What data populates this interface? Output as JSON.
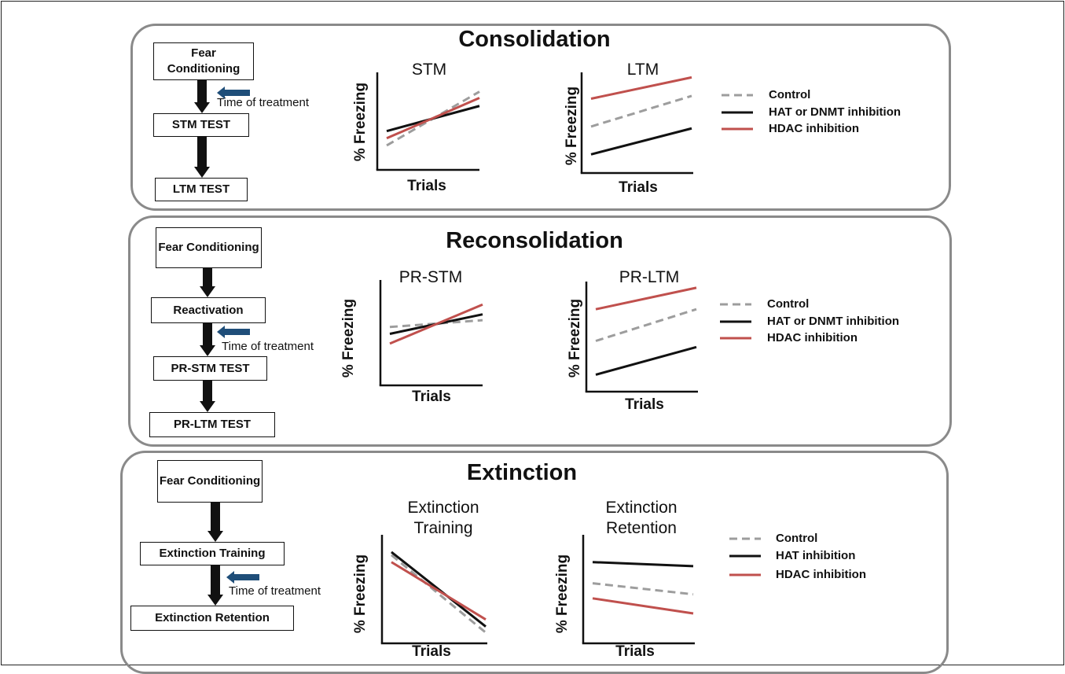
{
  "colors": {
    "control": "#9d9d9d",
    "inhibitor": "#111111",
    "hdac": "#c0504d",
    "panel_border": "#8a8a8a",
    "treatment_arrow": "#1f4e79"
  },
  "axis": {
    "y_label": "% Freezing",
    "x_label": "Trials"
  },
  "panels": [
    {
      "title": "Consolidation",
      "flow": [
        "Fear Conditioning",
        "STM TEST",
        "LTM TEST"
      ],
      "treatment_label": "Time of treatment",
      "legend": [
        "Control",
        "HAT or DNMT inhibition",
        "HDAC inhibition"
      ],
      "charts": [
        {
          "title": "STM",
          "series": [
            {
              "name": "Control",
              "values": [
                0.22,
                0.82
              ]
            },
            {
              "name": "HAT or DNMT inhibition",
              "values": [
                0.38,
                0.66
              ]
            },
            {
              "name": "HDAC inhibition",
              "values": [
                0.3,
                0.75
              ]
            }
          ]
        },
        {
          "title": "LTM",
          "series": [
            {
              "name": "Control",
              "values": [
                0.45,
                0.78
              ]
            },
            {
              "name": "HAT or DNMT inhibition",
              "values": [
                0.15,
                0.43
              ]
            },
            {
              "name": "HDAC inhibition",
              "values": [
                0.75,
                0.98
              ]
            }
          ]
        }
      ]
    },
    {
      "title": "Reconsolidation",
      "flow": [
        "Fear Conditioning",
        "Reactivation",
        "PR-STM TEST",
        "PR-LTM TEST"
      ],
      "treatment_label": "Time of treatment",
      "legend": [
        "Control",
        "HAT or DNMT inhibition",
        "HDAC inhibition"
      ],
      "charts": [
        {
          "title": "PR-STM",
          "series": [
            {
              "name": "Control",
              "values": [
                0.55,
                0.62
              ]
            },
            {
              "name": "HAT or DNMT inhibition",
              "values": [
                0.48,
                0.68
              ]
            },
            {
              "name": "HDAC inhibition",
              "values": [
                0.38,
                0.78
              ]
            }
          ]
        },
        {
          "title": "PR-LTM",
          "series": [
            {
              "name": "Control",
              "values": [
                0.45,
                0.76
              ]
            },
            {
              "name": "HAT or DNMT inhibition",
              "values": [
                0.12,
                0.39
              ]
            },
            {
              "name": "HDAC inhibition",
              "values": [
                0.76,
                0.97
              ]
            }
          ]
        }
      ]
    },
    {
      "title": "Extinction",
      "flow": [
        "Fear Conditioning",
        "Extinction Training",
        "Extinction Retention"
      ],
      "treatment_label": "Time of treatment",
      "legend": [
        "Control",
        "HAT inhibition",
        "HDAC inhibition"
      ],
      "charts": [
        {
          "title": "Extinction\nTraining",
          "series": [
            {
              "name": "Control",
              "values": [
                0.83,
                0.06
              ]
            },
            {
              "name": "HAT inhibition",
              "values": [
                0.86,
                0.12
              ]
            },
            {
              "name": "HDAC inhibition",
              "values": [
                0.76,
                0.19
              ]
            }
          ]
        },
        {
          "title": "Extinction\nRetention",
          "series": [
            {
              "name": "Control",
              "values": [
                0.55,
                0.44
              ]
            },
            {
              "name": "HAT inhibition",
              "values": [
                0.76,
                0.72
              ]
            },
            {
              "name": "HDAC inhibition",
              "values": [
                0.4,
                0.25
              ]
            }
          ]
        }
      ]
    }
  ],
  "chart_data": [
    {
      "type": "line",
      "title": "STM",
      "xlabel": "Trials",
      "ylabel": "% Freezing",
      "series": [
        {
          "name": "Control",
          "values": [
            0.22,
            0.82
          ]
        },
        {
          "name": "HAT or DNMT inhibition",
          "values": [
            0.38,
            0.66
          ]
        },
        {
          "name": "HDAC inhibition",
          "values": [
            0.3,
            0.75
          ]
        }
      ]
    },
    {
      "type": "line",
      "title": "LTM",
      "xlabel": "Trials",
      "ylabel": "% Freezing",
      "series": [
        {
          "name": "Control",
          "values": [
            0.45,
            0.78
          ]
        },
        {
          "name": "HAT or DNMT inhibition",
          "values": [
            0.15,
            0.43
          ]
        },
        {
          "name": "HDAC inhibition",
          "values": [
            0.75,
            0.98
          ]
        }
      ]
    },
    {
      "type": "line",
      "title": "PR-STM",
      "xlabel": "Trials",
      "ylabel": "% Freezing",
      "series": [
        {
          "name": "Control",
          "values": [
            0.55,
            0.62
          ]
        },
        {
          "name": "HAT or DNMT inhibition",
          "values": [
            0.48,
            0.68
          ]
        },
        {
          "name": "HDAC inhibition",
          "values": [
            0.38,
            0.78
          ]
        }
      ]
    },
    {
      "type": "line",
      "title": "PR-LTM",
      "xlabel": "Trials",
      "ylabel": "% Freezing",
      "series": [
        {
          "name": "Control",
          "values": [
            0.45,
            0.76
          ]
        },
        {
          "name": "HAT or DNMT inhibition",
          "values": [
            0.12,
            0.39
          ]
        },
        {
          "name": "HDAC inhibition",
          "values": [
            0.76,
            0.97
          ]
        }
      ]
    },
    {
      "type": "line",
      "title": "Extinction Training",
      "xlabel": "Trials",
      "ylabel": "% Freezing",
      "series": [
        {
          "name": "Control",
          "values": [
            0.83,
            0.06
          ]
        },
        {
          "name": "HAT inhibition",
          "values": [
            0.86,
            0.12
          ]
        },
        {
          "name": "HDAC inhibition",
          "values": [
            0.76,
            0.19
          ]
        }
      ]
    },
    {
      "type": "line",
      "title": "Extinction Retention",
      "xlabel": "Trials",
      "ylabel": "% Freezing",
      "series": [
        {
          "name": "Control",
          "values": [
            0.55,
            0.44
          ]
        },
        {
          "name": "HAT inhibition",
          "values": [
            0.76,
            0.72
          ]
        },
        {
          "name": "HDAC inhibition",
          "values": [
            0.4,
            0.25
          ]
        }
      ]
    }
  ]
}
